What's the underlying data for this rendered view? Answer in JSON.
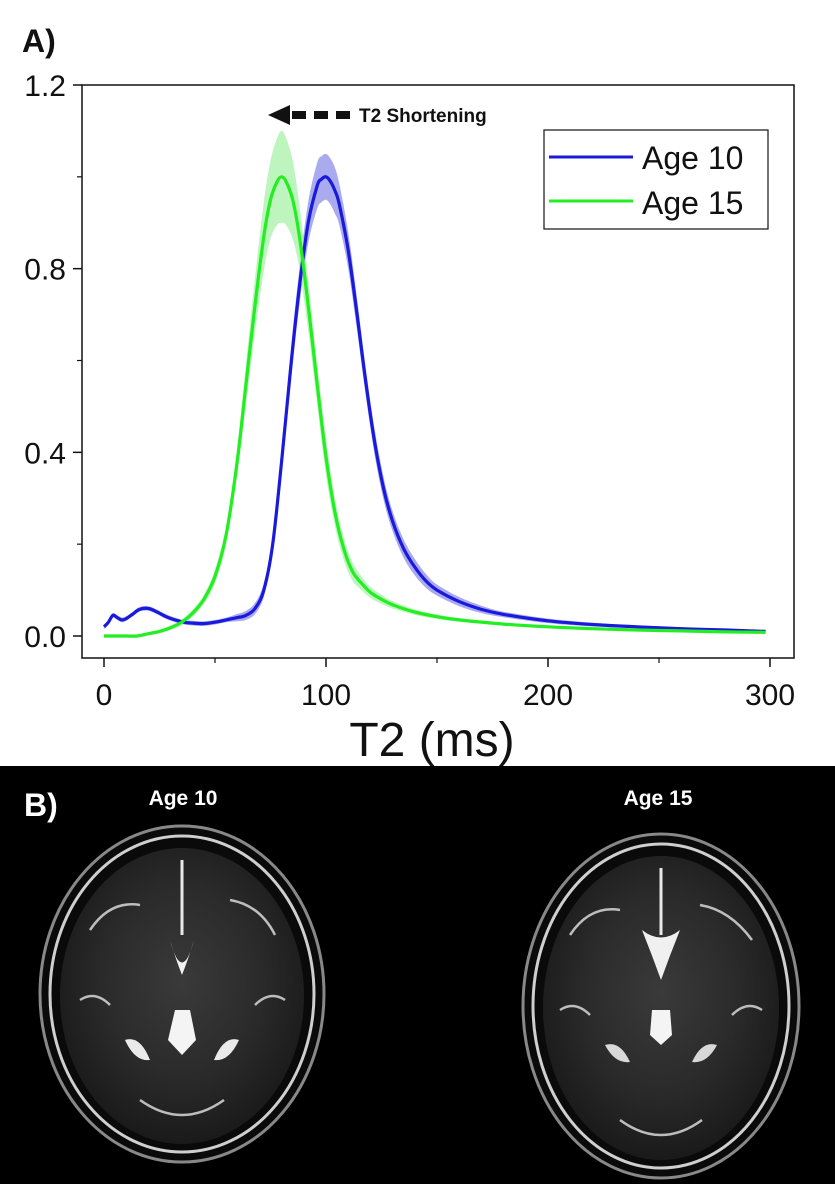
{
  "panel_a_label": "A)",
  "panel_b_label": "B)",
  "chart_data": {
    "type": "line",
    "title": "",
    "xlabel": "T2 (ms)",
    "ylabel": "",
    "xlim": [
      -10,
      310
    ],
    "ylim": [
      -0.05,
      1.2
    ],
    "xticks": [
      0,
      100,
      200,
      300
    ],
    "xtick_labels": [
      "0",
      "100",
      "200",
      "300"
    ],
    "yticks": [
      0.0,
      0.4,
      0.8,
      1.2
    ],
    "ytick_labels": [
      "0.0",
      "0.4",
      "0.8",
      "1.2"
    ],
    "legend_position": "top-right",
    "annotation": "T2 Shortening",
    "series": [
      {
        "name": "Age 10",
        "color": "#1a1adc",
        "band_color": "#8e8ee8",
        "x": [
          0,
          2,
          4,
          6,
          8,
          10,
          13,
          16,
          20,
          24,
          28,
          32,
          36,
          40,
          45,
          50,
          55,
          60,
          64,
          68,
          72,
          76,
          80,
          84,
          88,
          92,
          96,
          98,
          100,
          102,
          104,
          106,
          110,
          114,
          118,
          122,
          126,
          130,
          135,
          140,
          145,
          150,
          160,
          170,
          180,
          200,
          220,
          240,
          260,
          280,
          298
        ],
        "y": [
          0.02,
          0.03,
          0.045,
          0.04,
          0.035,
          0.038,
          0.048,
          0.058,
          0.06,
          0.052,
          0.042,
          0.035,
          0.03,
          0.028,
          0.027,
          0.03,
          0.035,
          0.04,
          0.045,
          0.06,
          0.1,
          0.2,
          0.38,
          0.58,
          0.76,
          0.9,
          0.98,
          0.995,
          1.0,
          0.99,
          0.97,
          0.94,
          0.84,
          0.7,
          0.55,
          0.42,
          0.32,
          0.25,
          0.19,
          0.15,
          0.12,
          0.1,
          0.075,
          0.058,
          0.047,
          0.033,
          0.025,
          0.02,
          0.016,
          0.013,
          0.01
        ],
        "band": [
          0.005,
          0.005,
          0.005,
          0.005,
          0.005,
          0.005,
          0.005,
          0.005,
          0.005,
          0.005,
          0.005,
          0.005,
          0.005,
          0.005,
          0.005,
          0.005,
          0.005,
          0.008,
          0.01,
          0.012,
          0.015,
          0.02,
          0.03,
          0.035,
          0.04,
          0.045,
          0.05,
          0.05,
          0.05,
          0.05,
          0.05,
          0.045,
          0.04,
          0.035,
          0.03,
          0.028,
          0.025,
          0.022,
          0.02,
          0.018,
          0.015,
          0.012,
          0.01,
          0.008,
          0.006,
          0.005,
          0.004,
          0.003,
          0.003,
          0.003,
          0.003
        ]
      },
      {
        "name": "Age 15",
        "color": "#22ee22",
        "band_color": "#a8f0a8",
        "x": [
          0,
          5,
          10,
          15,
          20,
          25,
          30,
          35,
          40,
          45,
          50,
          55,
          60,
          64,
          68,
          72,
          75,
          78,
          80,
          82,
          85,
          88,
          92,
          96,
          100,
          104,
          108,
          112,
          116,
          120,
          125,
          130,
          140,
          150,
          160,
          180,
          200,
          220,
          240,
          260,
          280,
          298
        ],
        "y": [
          0.0,
          0.0,
          0.0,
          0.0,
          0.005,
          0.01,
          0.018,
          0.03,
          0.05,
          0.08,
          0.13,
          0.22,
          0.38,
          0.55,
          0.72,
          0.87,
          0.95,
          0.99,
          1.0,
          0.99,
          0.95,
          0.87,
          0.72,
          0.55,
          0.39,
          0.27,
          0.19,
          0.14,
          0.115,
          0.095,
          0.08,
          0.068,
          0.052,
          0.042,
          0.035,
          0.026,
          0.02,
          0.016,
          0.013,
          0.011,
          0.009,
          0.008
        ],
        "band": [
          0.002,
          0.002,
          0.002,
          0.002,
          0.003,
          0.004,
          0.005,
          0.006,
          0.008,
          0.01,
          0.015,
          0.02,
          0.03,
          0.045,
          0.06,
          0.075,
          0.085,
          0.095,
          0.1,
          0.095,
          0.085,
          0.07,
          0.055,
          0.045,
          0.04,
          0.03,
          0.025,
          0.02,
          0.015,
          0.012,
          0.01,
          0.008,
          0.006,
          0.005,
          0.004,
          0.003,
          0.003,
          0.003,
          0.003,
          0.003,
          0.003,
          0.003
        ]
      }
    ]
  },
  "mri_images": [
    {
      "label": "Age 10",
      "description": "axial T2 map brain slice"
    },
    {
      "label": "Age 15",
      "description": "axial T2 map brain slice"
    }
  ],
  "colors": {
    "mri_background": "#000000",
    "text": "#111111"
  }
}
